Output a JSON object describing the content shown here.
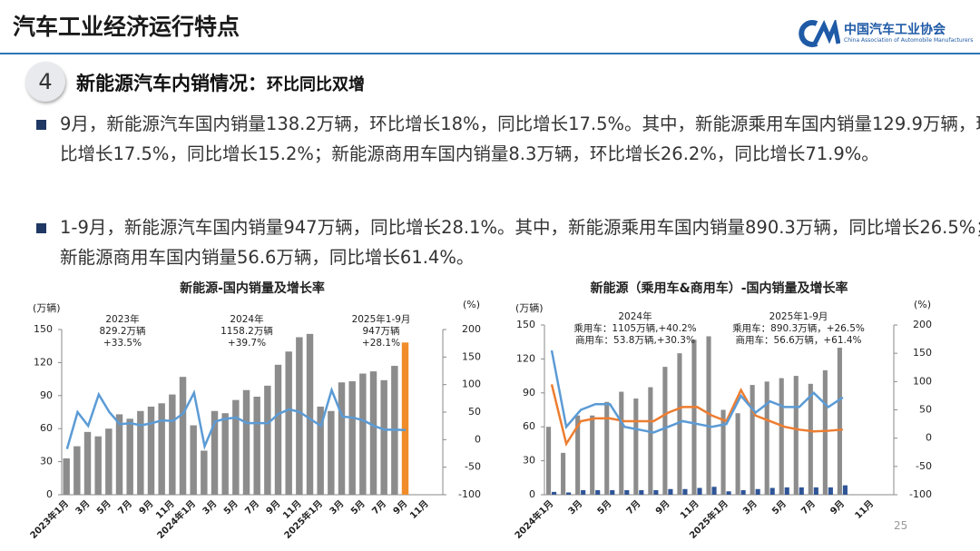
{
  "header": {
    "title": "汽车工业经济运行特点"
  },
  "logo": {
    "cn": "中国汽车工业协会",
    "en": "China Association of Automobile Manufacturers"
  },
  "section": {
    "number": "4",
    "title": "新能源汽车内销情况：",
    "subtitle": "环比同比双增"
  },
  "bullets": [
    "9月，新能源汽车国内销量138.2万辆，环比增长18%，同比增长17.5%。其中，新能源乘用车国内销量129.9万辆，环比增长17.5%，同比增长15.2%；新能源商用车国内销量8.3万辆，环比增长26.2%，同比增长71.9%。",
    "1-9月，新能源汽车国内销量947万辆，同比增长28.1%。其中，新能源乘用车国内销量890.3万辆，同比增长26.5%；新能源商用车国内销量56.6万辆，同比增长61.4%。"
  ],
  "page_number": "25",
  "chart_data": [
    {
      "type": "combo",
      "title": "新能源-国内销量及增长率",
      "ylabel": "(万辆)",
      "y2label": "(%)",
      "categories": [
        "2023年1月",
        null,
        "3月",
        null,
        "5月",
        null,
        "7月",
        null,
        "9月",
        null,
        "11月",
        null,
        "2024年1月",
        null,
        "3月",
        null,
        "5月",
        null,
        "7月",
        null,
        "9月",
        null,
        "11月",
        null,
        "2025年1月",
        null,
        "3月",
        null,
        "5月",
        null,
        "7月",
        null,
        "9月",
        null,
        "11月",
        null
      ],
      "ylim": [
        0,
        150
      ],
      "yticks": [
        0,
        30,
        60,
        90,
        120,
        150
      ],
      "y2lim": [
        -100,
        200
      ],
      "y2ticks": [
        -100,
        -50,
        0,
        50,
        100,
        150,
        200
      ],
      "series": [
        {
          "type": "bar",
          "color": "#8c8c8c",
          "colors": [
            "#8c8c8c",
            "#8c8c8c",
            "#8c8c8c",
            "#8c8c8c",
            "#8c8c8c",
            "#8c8c8c",
            "#8c8c8c",
            "#8c8c8c",
            "#8c8c8c",
            "#8c8c8c",
            "#8c8c8c",
            "#8c8c8c",
            "#8c8c8c",
            "#8c8c8c",
            "#8c8c8c",
            "#8c8c8c",
            "#8c8c8c",
            "#8c8c8c",
            "#8c8c8c",
            "#8c8c8c",
            "#8c8c8c",
            "#8c8c8c",
            "#8c8c8c",
            "#8c8c8c",
            "#8c8c8c",
            "#8c8c8c",
            "#8c8c8c",
            "#8c8c8c",
            "#8c8c8c",
            "#8c8c8c",
            "#8c8c8c",
            "#8c8c8c",
            "#f08c2a",
            "#8c8c8c",
            "#8c8c8c",
            "#8c8c8c"
          ],
          "values": [
            33,
            44,
            57,
            53,
            60,
            73,
            69,
            76,
            80,
            83,
            91,
            107,
            63,
            40,
            76,
            74,
            86,
            95,
            89,
            99,
            118,
            130,
            143,
            146,
            80,
            76,
            102,
            103,
            110,
            112,
            104,
            117,
            138.2,
            null,
            null,
            null
          ]
        },
        {
          "type": "line",
          "axis": "y2",
          "color": "#5b9bd5",
          "values": [
            -17,
            50,
            25,
            82,
            50,
            28,
            30,
            26,
            30,
            35,
            34,
            48,
            85,
            -12,
            33,
            38,
            40,
            30,
            30,
            30,
            47,
            55,
            50,
            37,
            25,
            90,
            42,
            40,
            35,
            25,
            18,
            18,
            17.5,
            null,
            null,
            null
          ]
        }
      ],
      "annotations": [
        [
          "2023年",
          "829.2万辆",
          "+33.5%"
        ],
        [
          "2024年",
          "1158.2万辆",
          "+39.7%"
        ],
        [
          "2025年1-9月",
          "947万辆",
          "+28.1%"
        ]
      ]
    },
    {
      "type": "combo",
      "title": "新能源（乘用车&商用车）-国内销量及增长率",
      "ylabel": "(万辆)",
      "y2label": "(%)",
      "categories": [
        "2024年1月",
        null,
        "3月",
        null,
        "5月",
        null,
        "7月",
        null,
        "9月",
        null,
        "11月",
        null,
        "2025年1月",
        null,
        "3月",
        null,
        "5月",
        null,
        "7月",
        null,
        "9月",
        null,
        "11月",
        null
      ],
      "ylim": [
        0,
        150
      ],
      "yticks": [
        0,
        30,
        60,
        90,
        120,
        150
      ],
      "y2lim": [
        -100,
        200
      ],
      "y2ticks": [
        -100,
        -50,
        0,
        50,
        100,
        150,
        200
      ],
      "series": [
        {
          "type": "bar",
          "color": "#8c8c8c",
          "values": [
            60,
            37,
            70,
            70,
            82,
            91,
            85,
            95,
            113,
            125,
            137,
            140,
            75,
            72,
            97,
            100,
            103,
            105,
            98,
            110,
            129.9,
            null,
            null,
            null
          ]
        },
        {
          "type": "bar",
          "color": "#2f5597",
          "values": [
            2.5,
            2,
            4,
            4,
            4,
            4,
            4,
            4,
            5,
            5,
            6,
            7,
            3,
            4,
            5,
            6,
            6.5,
            6.5,
            6.5,
            6.5,
            8.3,
            null,
            null,
            null
          ]
        },
        {
          "type": "line",
          "axis": "y2",
          "color": "#ed7d31",
          "values": [
            95,
            -10,
            30,
            35,
            35,
            30,
            30,
            30,
            45,
            55,
            55,
            40,
            30,
            85,
            40,
            30,
            20,
            15,
            12,
            13,
            15.2,
            null,
            null,
            null
          ]
        },
        {
          "type": "line",
          "axis": "y2",
          "color": "#5b9bd5",
          "values": [
            155,
            20,
            50,
            60,
            60,
            20,
            15,
            10,
            20,
            30,
            25,
            20,
            25,
            75,
            45,
            65,
            55,
            55,
            80,
            55,
            71.9,
            null,
            null,
            null
          ]
        }
      ],
      "annotations": [
        [
          "2024年",
          "乘用车：1105万辆,+40.2%",
          "商用车：53.8万辆,+30.3%"
        ],
        [
          "2025年1-9月",
          "乘用车：890.3万辆，+26.5%",
          "商用车：56.6万辆，+61.4%"
        ]
      ]
    }
  ]
}
